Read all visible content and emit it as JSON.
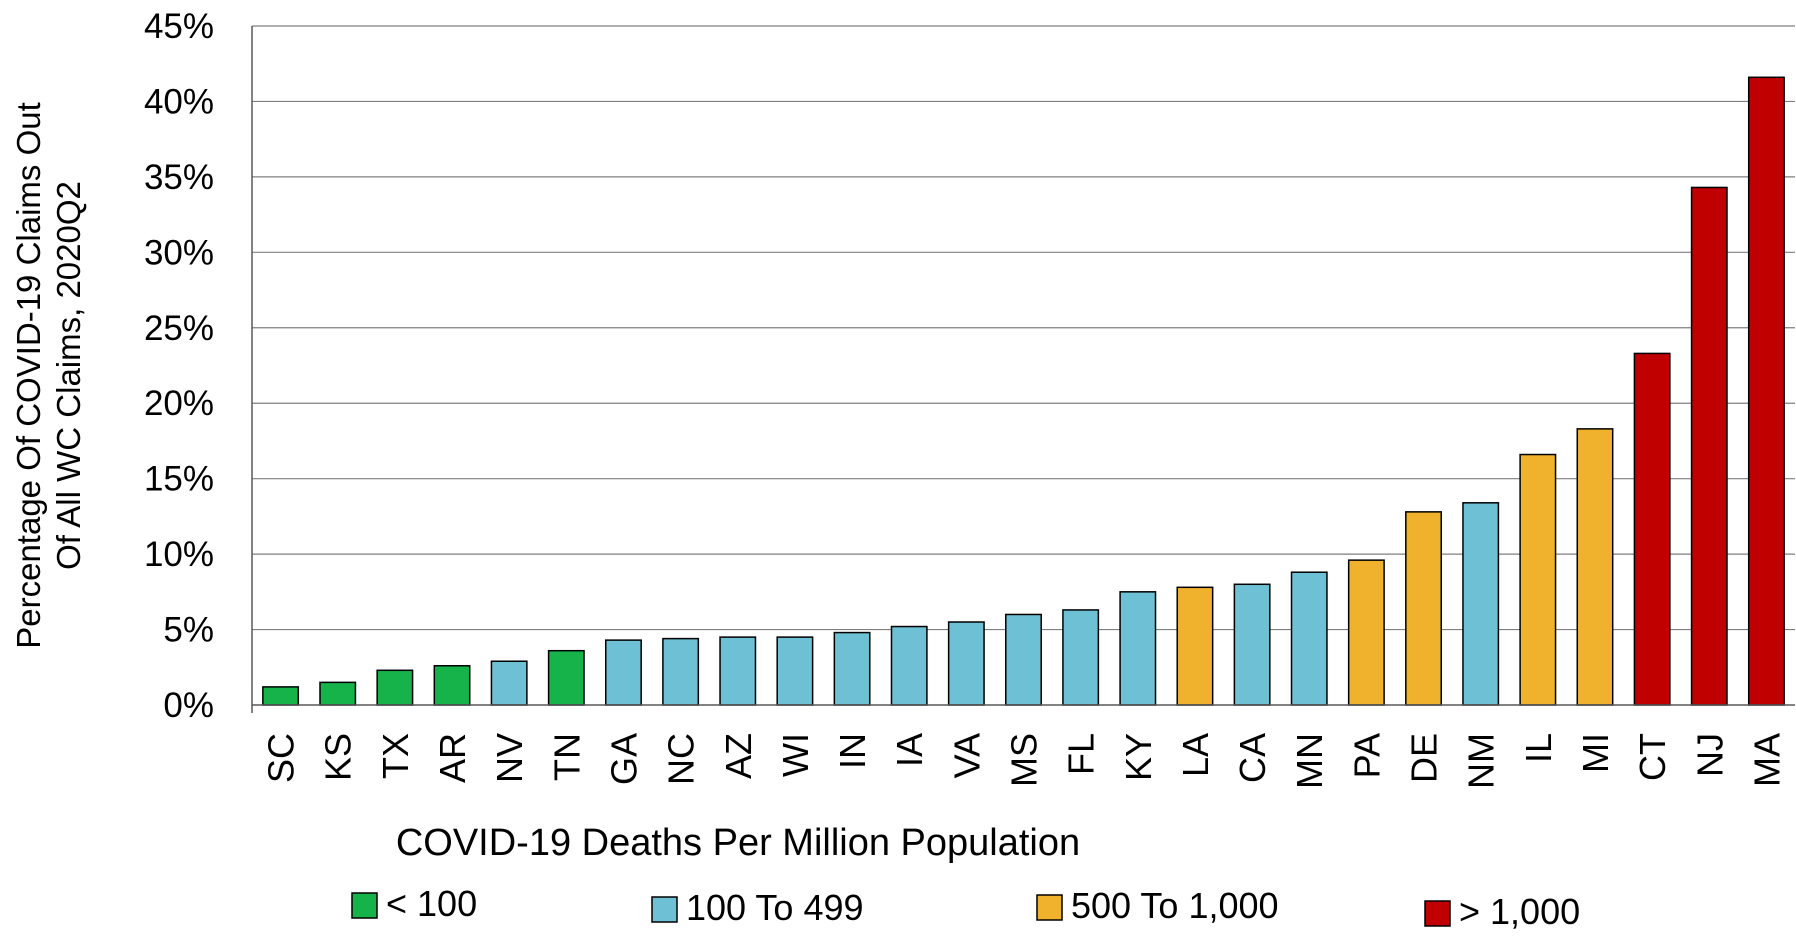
{
  "chart_data": {
    "type": "bar",
    "title": "",
    "xlabel": "COVID-19 Deaths Per Million Population",
    "ylabel_lines": [
      "Percentage Of COVID-19 Claims Out",
      "Of All WC Claims, 2020Q2"
    ],
    "ylim": [
      0,
      45
    ],
    "yticks": [
      0,
      5,
      10,
      15,
      20,
      25,
      30,
      35,
      40,
      45
    ],
    "ytick_suffix": "%",
    "grid": true,
    "legend_position": "bottom",
    "categories": [
      "SC",
      "KS",
      "TX",
      "AR",
      "NV",
      "TN",
      "GA",
      "NC",
      "AZ",
      "WI",
      "IN",
      "IA",
      "VA",
      "MS",
      "FL",
      "KY",
      "LA",
      "CA",
      "MN",
      "PA",
      "DE",
      "NM",
      "IL",
      "MI",
      "CT",
      "NJ",
      "MA"
    ],
    "values": [
      1.2,
      1.5,
      2.3,
      2.6,
      2.9,
      3.6,
      4.3,
      4.4,
      4.5,
      4.5,
      4.8,
      5.2,
      5.5,
      6.0,
      6.3,
      7.5,
      7.8,
      8.0,
      8.8,
      9.6,
      12.8,
      13.4,
      16.6,
      18.3,
      23.3,
      34.3,
      41.6
    ],
    "groups": [
      0,
      0,
      0,
      0,
      1,
      0,
      1,
      1,
      1,
      1,
      1,
      1,
      1,
      1,
      1,
      1,
      2,
      1,
      1,
      2,
      2,
      1,
      2,
      2,
      3,
      3,
      3
    ],
    "legend": [
      {
        "label": "< 100",
        "color": "#16b24a"
      },
      {
        "label": "100 To 499",
        "color": "#6ec0d4"
      },
      {
        "label": "500 To 1,000",
        "color": "#f0b12c"
      },
      {
        "label": "> 1,000",
        "color": "#c00000"
      }
    ]
  }
}
